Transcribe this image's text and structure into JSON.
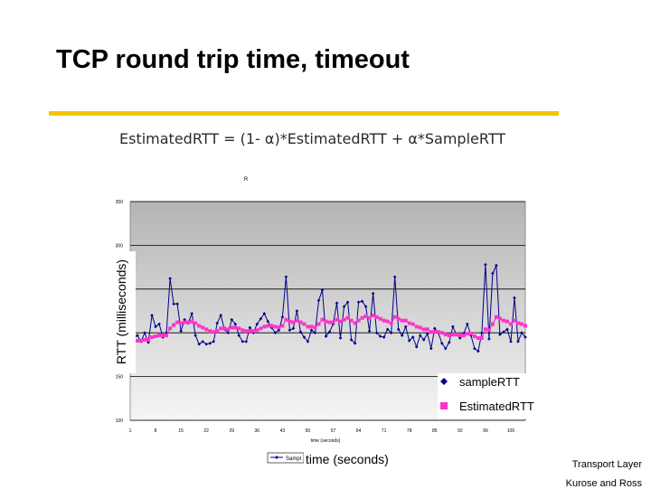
{
  "slide": {
    "title": "TCP round trip time, timeout",
    "formula": "EstimatedRTT = (1- α)*EstimatedRTT + α*SampleRTT",
    "footer_line1": "Transport Layer",
    "footer_line2": "Kurose and Ross"
  },
  "colors": {
    "accent_bar": "#f2c500",
    "sample_series": "#00008b",
    "estimated_series": "#ff33cc",
    "plot_background_top": "#b4b4b4",
    "plot_background_bottom": "#f5f5f5"
  },
  "chart_data": {
    "type": "line",
    "title": "R",
    "xlabel": "time (seconds)",
    "ylabel": "RTT (milliseconds)",
    "ylabel_small": "RTT (milliseconds)",
    "xlim": [
      1,
      110
    ],
    "ylim": [
      100,
      350
    ],
    "yticks": [
      100,
      150,
      200,
      250,
      300,
      350
    ],
    "xticks": [
      1,
      8,
      15,
      22,
      29,
      36,
      43,
      50,
      57,
      64,
      71,
      78,
      85,
      92,
      99,
      106
    ],
    "grid": true,
    "legend": {
      "placement": "bottom-right",
      "entries": [
        "sampleRTT",
        "EstimatedRTT"
      ]
    },
    "bottom_legend_label": "Sampl",
    "series": [
      {
        "name": "sampleRTT",
        "marker": "diamond",
        "values": [
          190,
          194,
          197,
          190,
          200,
          189,
          220,
          207,
          210,
          195,
          200,
          262,
          233,
          233,
          202,
          215,
          211,
          222,
          197,
          187,
          190,
          187,
          188,
          190,
          211,
          220,
          204,
          200,
          215,
          210,
          197,
          190,
          190,
          206,
          200,
          210,
          216,
          222,
          213,
          206,
          200,
          203,
          218,
          264,
          203,
          205,
          225,
          201,
          195,
          190,
          203,
          200,
          237,
          249,
          196,
          201,
          210,
          234,
          194,
          230,
          235,
          192,
          188,
          235,
          236,
          230,
          202,
          245,
          200,
          196,
          195,
          204,
          200,
          264,
          204,
          197,
          207,
          191,
          195,
          184,
          197,
          192,
          199,
          182,
          205,
          200,
          188,
          182,
          189,
          207,
          198,
          194,
          199,
          210,
          197,
          182,
          179,
          200,
          278,
          193,
          268,
          277,
          198,
          201,
          204,
          190,
          240,
          190,
          200,
          195
        ]
      },
      {
        "name": "EstimatedRTT",
        "marker": "square",
        "values": [
          190,
          190,
          191,
          191,
          192,
          192,
          195,
          196,
          197,
          197,
          197,
          205,
          209,
          212,
          211,
          212,
          212,
          213,
          211,
          208,
          206,
          204,
          202,
          201,
          202,
          205,
          205,
          204,
          206,
          206,
          205,
          203,
          202,
          202,
          202,
          203,
          205,
          207,
          208,
          208,
          207,
          206,
          208,
          215,
          213,
          212,
          214,
          212,
          210,
          207,
          207,
          206,
          210,
          215,
          213,
          212,
          212,
          215,
          213,
          215,
          217,
          214,
          211,
          214,
          217,
          219,
          217,
          220,
          218,
          216,
          214,
          213,
          211,
          218,
          216,
          214,
          214,
          211,
          210,
          207,
          206,
          204,
          204,
          201,
          201,
          201,
          200,
          198,
          197,
          198,
          198,
          197,
          197,
          199,
          199,
          196,
          194,
          194,
          204,
          203,
          210,
          218,
          216,
          214,
          213,
          210,
          214,
          211,
          210,
          208
        ]
      }
    ]
  }
}
